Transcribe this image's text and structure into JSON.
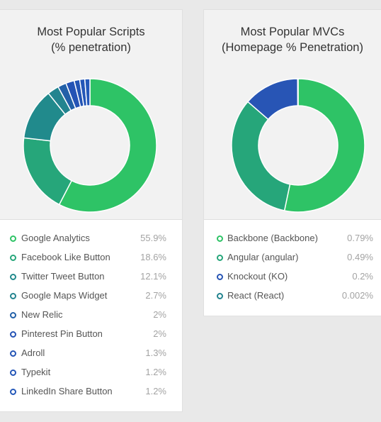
{
  "chart_data": [
    {
      "type": "pie",
      "title": "Most Popular Scripts",
      "subtitle": "(% penetration)",
      "series": [
        {
          "label": "Google Analytics",
          "value": 55.9,
          "display": "55.9%",
          "color": "#2ec366"
        },
        {
          "label": "Facebook Like Button",
          "value": 18.6,
          "display": "18.6%",
          "color": "#26a67a"
        },
        {
          "label": "Twitter Tweet Button",
          "value": 12.1,
          "display": "12.1%",
          "color": "#218a8c"
        },
        {
          "label": "Google Maps Widget",
          "value": 2.7,
          "display": "2.7%",
          "color": "#23848f"
        },
        {
          "label": "New Relic",
          "value": 2,
          "display": "2%",
          "color": "#2260a8"
        },
        {
          "label": "Pinterest Pin Button",
          "value": 2,
          "display": "2%",
          "color": "#2453b5"
        },
        {
          "label": "Adroll",
          "value": 1.3,
          "display": "1.3%",
          "color": "#2455b5"
        },
        {
          "label": "Typekit",
          "value": 1.2,
          "display": "1.2%",
          "color": "#2456b7"
        },
        {
          "label": "LinkedIn Share Button",
          "value": 1.2,
          "display": "1.2%",
          "color": "#2458b9"
        }
      ]
    },
    {
      "type": "pie",
      "title": "Most Popular MVCs",
      "subtitle": "(Homepage % Penetration)",
      "series": [
        {
          "label": "Backbone (Backbone)",
          "value": 0.79,
          "display": "0.79%",
          "color": "#2ec366"
        },
        {
          "label": "Angular (angular)",
          "value": 0.49,
          "display": "0.49%",
          "color": "#26a67a"
        },
        {
          "label": "Knockout (KO)",
          "value": 0.2,
          "display": "0.2%",
          "color": "#2855b5"
        },
        {
          "label": "React (React)",
          "value": 0.002,
          "display": "0.002%",
          "color": "#23848f"
        }
      ]
    }
  ]
}
